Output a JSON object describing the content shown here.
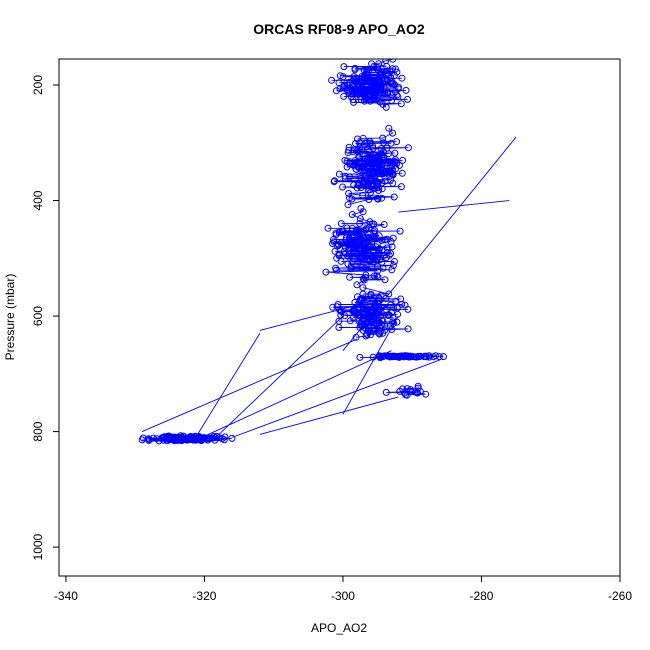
{
  "chart_data": {
    "type": "scatter",
    "title": "ORCAS RF08-9 APO_AO2",
    "xlabel": "APO_AO2",
    "ylabel": "Pressure (mbar)",
    "xlim": [
      -341,
      -260
    ],
    "ylim": [
      1050,
      155
    ],
    "y_reversed": true,
    "x_ticks": [
      -340,
      -320,
      -300,
      -280,
      -260
    ],
    "y_ticks": [
      200,
      400,
      600,
      800,
      1000
    ],
    "grid": false,
    "legend": "none",
    "marker": "open-circle",
    "connected": true,
    "color": "#0000ff",
    "clusters": [
      {
        "x_center": -323,
        "x_spread": 6,
        "y_center": 812,
        "y_spread": 4,
        "count": 150
      },
      {
        "x_center": -296,
        "x_spread": 5,
        "y_center": 200,
        "y_spread": 40,
        "count": 170
      },
      {
        "x_center": -296,
        "x_spread": 5,
        "y_center": 340,
        "y_spread": 60,
        "count": 180
      },
      {
        "x_center": -297,
        "x_spread": 5,
        "y_center": 480,
        "y_spread": 60,
        "count": 170
      },
      {
        "x_center": -296,
        "x_spread": 5,
        "y_center": 600,
        "y_spread": 45,
        "count": 130
      },
      {
        "x_center": -291,
        "x_spread": 6,
        "y_center": 670,
        "y_spread": 2,
        "count": 55
      },
      {
        "x_center": -290,
        "x_spread": 4,
        "y_center": 730,
        "y_spread": 10,
        "count": 15
      }
    ],
    "transects": [
      [
        [
          -329,
          800
        ],
        [
          -298,
          640
        ]
      ],
      [
        [
          -321,
          805
        ],
        [
          -312,
          630
        ]
      ],
      [
        [
          -320,
          808
        ],
        [
          -293,
          660
        ]
      ],
      [
        [
          -318,
          806
        ],
        [
          -300,
          600
        ]
      ],
      [
        [
          -316,
          810
        ],
        [
          -286,
          676
        ]
      ],
      [
        [
          -312,
          805
        ],
        [
          -292,
          740
        ]
      ],
      [
        [
          -300,
          770
        ],
        [
          -292,
          600
        ]
      ],
      [
        [
          -275,
          290
        ],
        [
          -300,
          660
        ]
      ],
      [
        [
          -312,
          625
        ],
        [
          -296,
          575
        ]
      ],
      [
        [
          -276,
          400
        ],
        [
          -292,
          420
        ]
      ]
    ]
  }
}
